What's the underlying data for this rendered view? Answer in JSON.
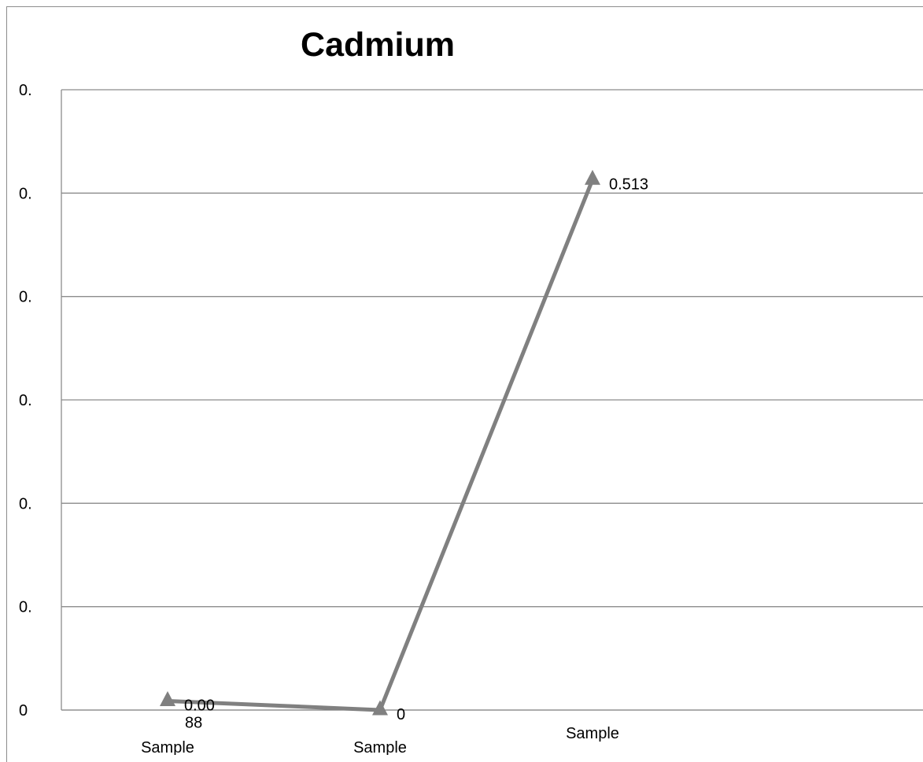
{
  "chart_data": {
    "type": "line",
    "title": "Cadmium",
    "xlabel": "",
    "ylabel": "",
    "categories": [
      "Sample",
      "Sample",
      "Sample"
    ],
    "series": [
      {
        "values": [
          0.0088,
          0,
          0.513
        ],
        "data_labels": [
          "0.00\n88",
          "0",
          "0.513"
        ],
        "color": "#808080",
        "marker": "triangle"
      }
    ],
    "y_tick_labels": [
      "0",
      "0.",
      "0.",
      "0.",
      "0.",
      "0.",
      "0."
    ],
    "ylim": [
      0,
      0.6
    ],
    "grid": true,
    "legend": "none"
  }
}
